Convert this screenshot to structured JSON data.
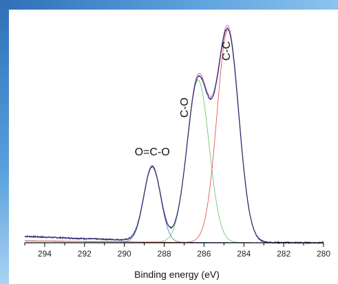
{
  "chart_data": {
    "type": "line",
    "xlabel": "Binding energy (eV)",
    "ylabel": "",
    "xlim": [
      295,
      280
    ],
    "x_reversed": true,
    "xticks": [
      294,
      292,
      290,
      288,
      286,
      284,
      282,
      280
    ],
    "x_minor_step": 1,
    "y_axis_visible": false,
    "grid": false,
    "background_baseline": 0.03,
    "components": [
      {
        "peak_label": "O=C-O",
        "center": 288.6,
        "height": 0.345,
        "sigma": 0.42,
        "color": "#3f6fd0"
      },
      {
        "peak_label": "C-O",
        "center": 286.3,
        "height": 0.745,
        "sigma": 0.55,
        "color": "#5cc35c"
      },
      {
        "peak_label": "C-C",
        "center": 284.8,
        "height": 0.975,
        "sigma": 0.55,
        "color": "#e04040"
      }
    ],
    "envelope_color": "#c070c0",
    "measured_color": "#2a2a6a",
    "annotations": [
      {
        "text": "O=C-O",
        "x": 288.6,
        "y": 0.4,
        "rotation": 0
      },
      {
        "text": "C-O",
        "x": 286.8,
        "y": 0.62,
        "rotation": -90
      },
      {
        "text": "C-C",
        "x": 284.7,
        "y": 0.88,
        "rotation": -90
      }
    ]
  }
}
